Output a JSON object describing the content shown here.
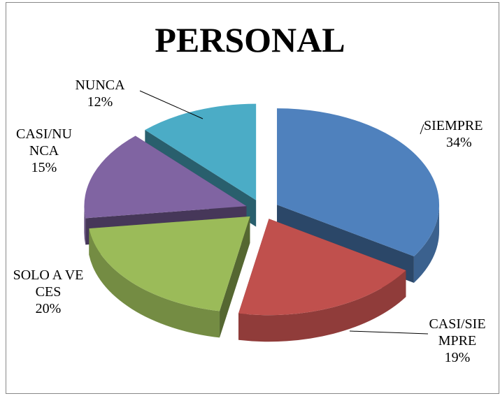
{
  "chart_data": {
    "type": "pie3d",
    "title": "PERSONAL",
    "categories": [
      "SIEMPRE",
      "CASI/SIEMPRE",
      "SOLO A VECES",
      "CASI/NUNCA",
      "NUNCA"
    ],
    "values": [
      34,
      19,
      20,
      15,
      12
    ],
    "value_labels": [
      "34%",
      "19%",
      "20%",
      "15%",
      "12%"
    ],
    "colors": [
      "#4f81bd",
      "#c0504d",
      "#9bbb59",
      "#8064a2",
      "#4bacc6"
    ]
  }
}
